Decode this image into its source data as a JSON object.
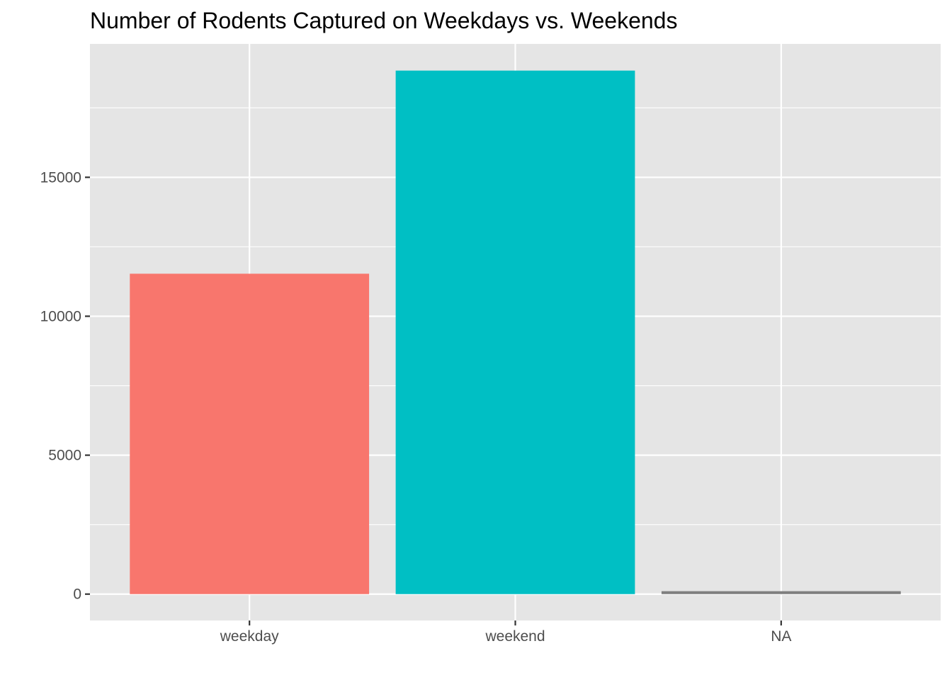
{
  "chart_data": {
    "type": "bar",
    "title": "Number of Rodents Captured on Weekdays vs. Weekends",
    "xlabel": "",
    "ylabel": "",
    "categories": [
      "weekday",
      "weekend",
      "NA"
    ],
    "values": [
      11530,
      18840,
      105
    ],
    "colors": [
      "#F8766D",
      "#00BFC4",
      "#7F7F7F"
    ],
    "ylim": [
      -950,
      19800
    ],
    "yticks": [
      0,
      5000,
      10000,
      15000
    ],
    "ytick_labels": [
      "0",
      "5000",
      "10000",
      "15000"
    ],
    "grid": true,
    "legend": "none",
    "panel_background": "#E5E5E5",
    "grid_color": "#FFFFFF"
  }
}
